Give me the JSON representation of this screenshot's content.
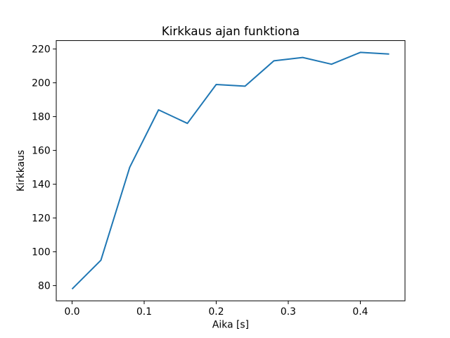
{
  "chart_data": {
    "type": "line",
    "title": "Kirkkaus ajan funktiona",
    "xlabel": "Aika [s]",
    "ylabel": "Kirkkaus",
    "x": [
      0.0,
      0.04,
      0.08,
      0.12,
      0.16,
      0.2,
      0.24,
      0.28,
      0.32,
      0.36,
      0.4,
      0.44
    ],
    "values": [
      78,
      95,
      150,
      184,
      176,
      199,
      198,
      213,
      215,
      211,
      218,
      217
    ],
    "xlim": [
      -0.022,
      0.462
    ],
    "ylim": [
      71,
      225
    ],
    "xticks": [
      0.0,
      0.1,
      0.2,
      0.3,
      0.4
    ],
    "xtick_labels": [
      "0.0",
      "0.1",
      "0.2",
      "0.3",
      "0.4"
    ],
    "yticks": [
      80,
      100,
      120,
      140,
      160,
      180,
      200,
      220
    ],
    "ytick_labels": [
      "80",
      "100",
      "120",
      "140",
      "160",
      "180",
      "200",
      "220"
    ],
    "grid": false,
    "legend": false,
    "line_color": "#1f77b4",
    "axis_color": "#000000",
    "text_color": "#000000",
    "background_color": "#ffffff"
  }
}
